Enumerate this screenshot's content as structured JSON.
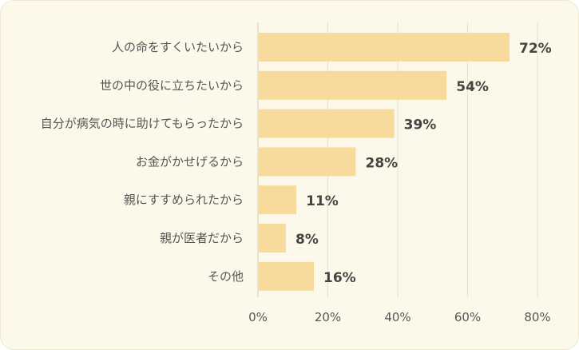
{
  "chart_data": {
    "type": "bar",
    "orientation": "horizontal",
    "categories": [
      "人の命をすくいたいから",
      "世の中の役に立ちたいから",
      "自分が病気の時に助けてもらったから",
      "お金がかせげるから",
      "親にすすめられたから",
      "親が医者だから",
      "その他"
    ],
    "values": [
      72,
      54,
      39,
      28,
      11,
      8,
      16
    ],
    "value_labels": [
      "72%",
      "54%",
      "39%",
      "28%",
      "11%",
      "8%",
      "16%"
    ],
    "xlim": [
      0,
      80
    ],
    "x_ticks": [
      0,
      20,
      40,
      60,
      80
    ],
    "x_tick_labels": [
      "0%",
      "20%",
      "40%",
      "60%",
      "80%"
    ],
    "grid": "vertical",
    "legend": "none",
    "title": "",
    "xlabel": "",
    "ylabel": "",
    "colors": {
      "bar": "#f8db9c",
      "background": "#fdf9ea",
      "grid": "#e4dfcf",
      "text": "#555555",
      "value_text": "#444444"
    }
  }
}
